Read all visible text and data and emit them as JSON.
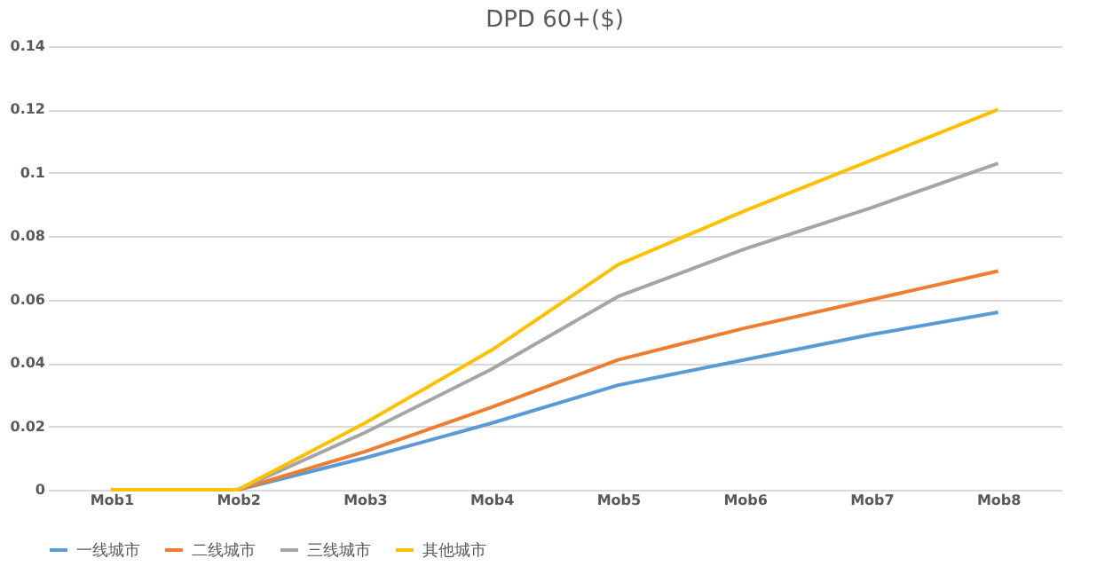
{
  "chart_data": {
    "type": "line",
    "title": "DPD 60+($)",
    "categories": [
      "Mob1",
      "Mob2",
      "Mob3",
      "Mob4",
      "Mob5",
      "Mob6",
      "Mob7",
      "Mob8"
    ],
    "series": [
      {
        "name": "一线城市",
        "color": "#5b9bd5",
        "values": [
          0,
          0,
          0.01,
          0.021,
          0.033,
          0.041,
          0.049,
          0.056
        ]
      },
      {
        "name": "二线城市",
        "color": "#ed7d31",
        "values": [
          0,
          0,
          0.012,
          0.026,
          0.041,
          0.051,
          0.06,
          0.069
        ]
      },
      {
        "name": "三线城市",
        "color": "#a5a5a5",
        "values": [
          0,
          0,
          0.018,
          0.038,
          0.061,
          0.076,
          0.089,
          0.103
        ]
      },
      {
        "name": "其他城市",
        "color": "#ffc000",
        "values": [
          0,
          0,
          0.021,
          0.044,
          0.071,
          0.088,
          0.104,
          0.12
        ]
      }
    ],
    "ylim": [
      0,
      0.14
    ],
    "yticks": [
      0,
      0.02,
      0.04,
      0.06,
      0.08,
      0.1,
      0.12,
      0.14
    ],
    "grid": "y",
    "legend": "bottom",
    "marker": "none",
    "line_style": "solid"
  }
}
